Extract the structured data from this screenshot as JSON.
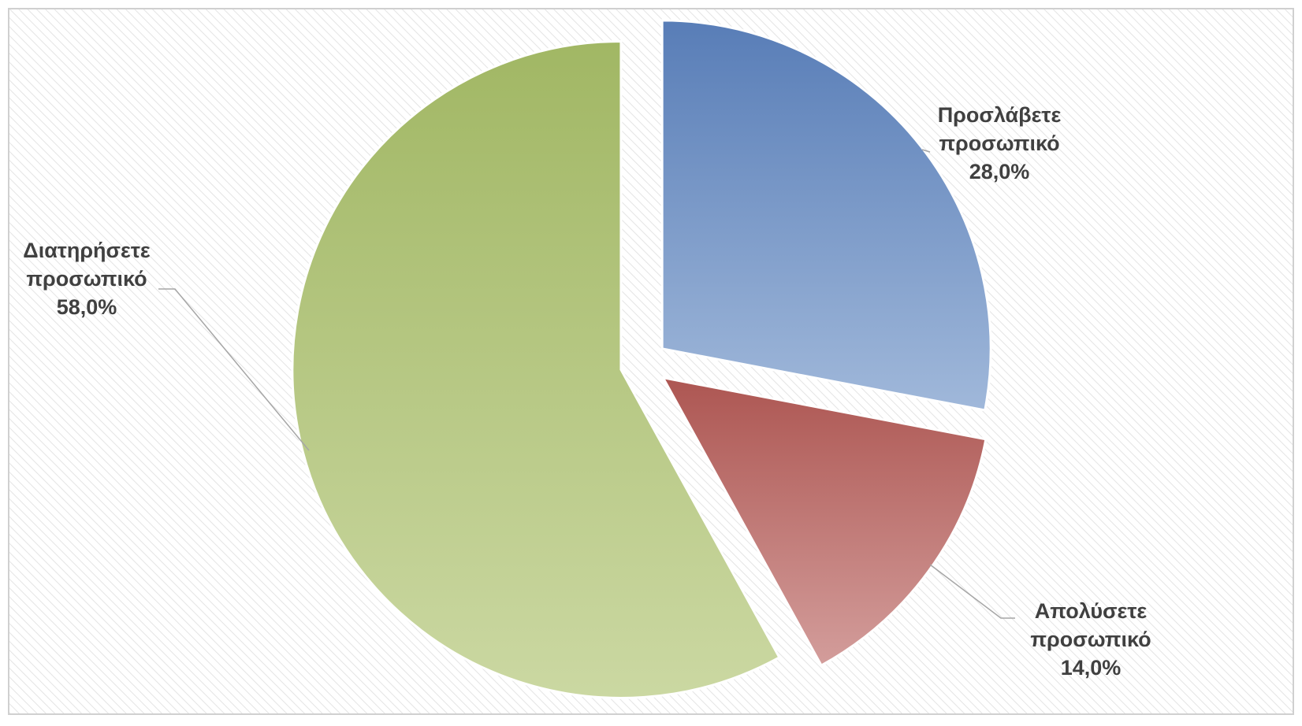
{
  "chart_data": {
    "type": "pie",
    "categories": [
      "Προσλάβετε προσωπικό",
      "Απολύσετε προσωπικό",
      "Διατηρήσετε προσωπικό"
    ],
    "values": [
      28,
      14,
      58
    ],
    "value_labels": [
      "28,0%",
      "14,0%",
      "58,0%"
    ],
    "colors": [
      [
        "#587db7",
        "#a0b8da"
      ],
      [
        "#ad5652",
        "#d39d9b"
      ],
      [
        "#a1b764",
        "#cbd8a2"
      ]
    ]
  }
}
